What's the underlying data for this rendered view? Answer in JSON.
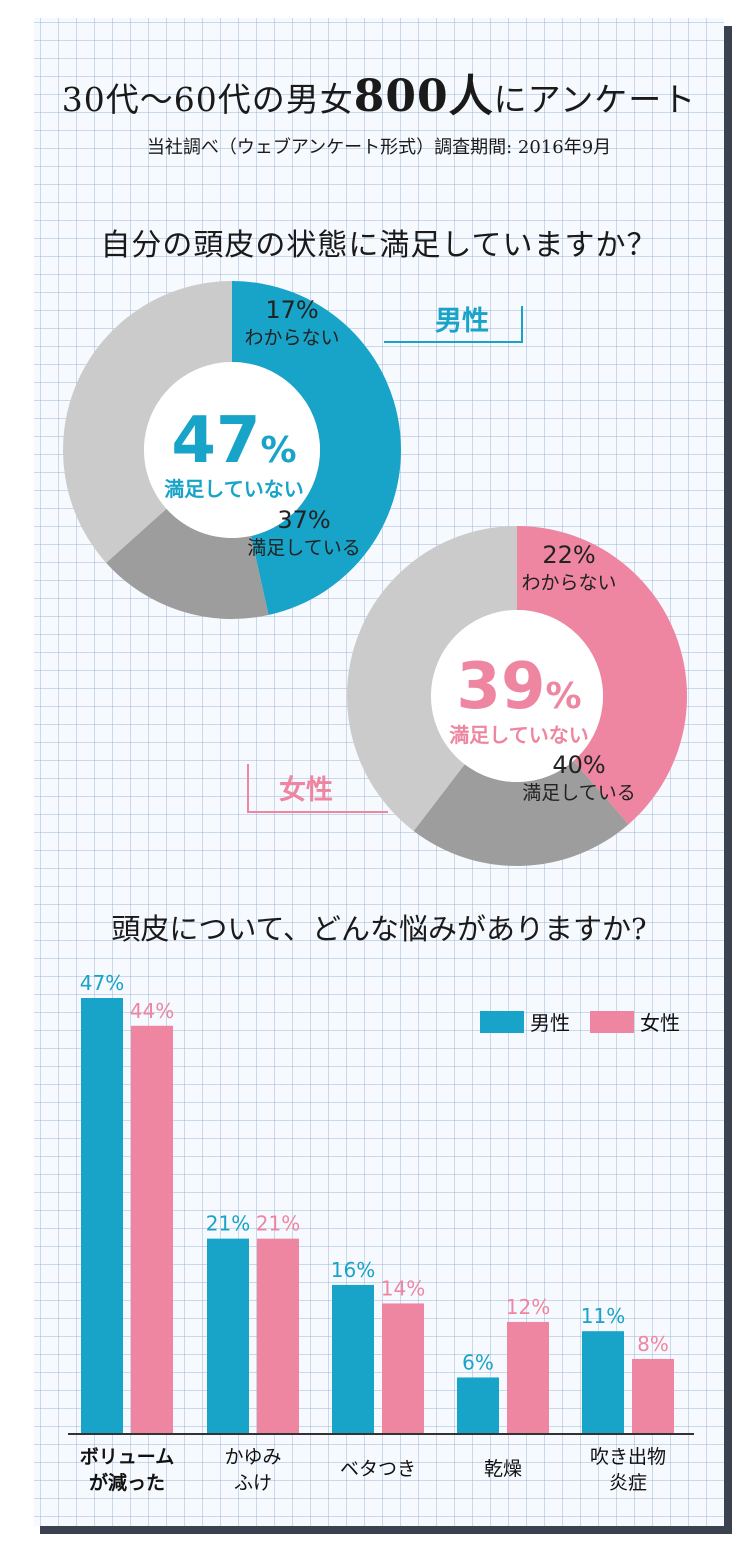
{
  "header": {
    "title_a": "30代〜60代の男女",
    "title_big": "800人",
    "title_b": "にアンケート",
    "subtitle": "当社調べ（ウェブアンケート形式）調査期間: 2016年9月"
  },
  "section1": {
    "question": "自分の頭皮の状態に満足していますか？"
  },
  "section2": {
    "question": "頭皮について、どんな悩みがありますか?"
  },
  "colors": {
    "male": "#18a3c8",
    "female": "#ee86a1",
    "unknown": "#9d9d9d",
    "satisfied": "#cbcbcb"
  },
  "chart_data": [
    {
      "type": "pie",
      "title": "男性",
      "slices": [
        {
          "label": "満足していない",
          "value": 47
        },
        {
          "label": "わからない",
          "value": 17
        },
        {
          "label": "満足している",
          "value": 37
        }
      ],
      "center_label": {
        "value": "47",
        "unit": "%",
        "label": "満足していない"
      }
    },
    {
      "type": "pie",
      "title": "女性",
      "slices": [
        {
          "label": "満足していない",
          "value": 39
        },
        {
          "label": "わからない",
          "value": 22
        },
        {
          "label": "満足している",
          "value": 40
        }
      ],
      "center_label": {
        "value": "39",
        "unit": "%",
        "label": "満足していない"
      }
    },
    {
      "type": "bar",
      "categories": [
        [
          "ボリューム",
          "が減った"
        ],
        [
          "かゆみ",
          "ふけ"
        ],
        [
          "ベタつき"
        ],
        [
          "乾燥"
        ],
        [
          "吹き出物",
          "炎症"
        ]
      ],
      "series": [
        {
          "name": "男性",
          "values": [
            47,
            21,
            16,
            6,
            11
          ]
        },
        {
          "name": "女性",
          "values": [
            44,
            21,
            14,
            12,
            8
          ]
        }
      ],
      "legend_position": "top-right",
      "ylim": [
        0,
        47
      ]
    }
  ]
}
